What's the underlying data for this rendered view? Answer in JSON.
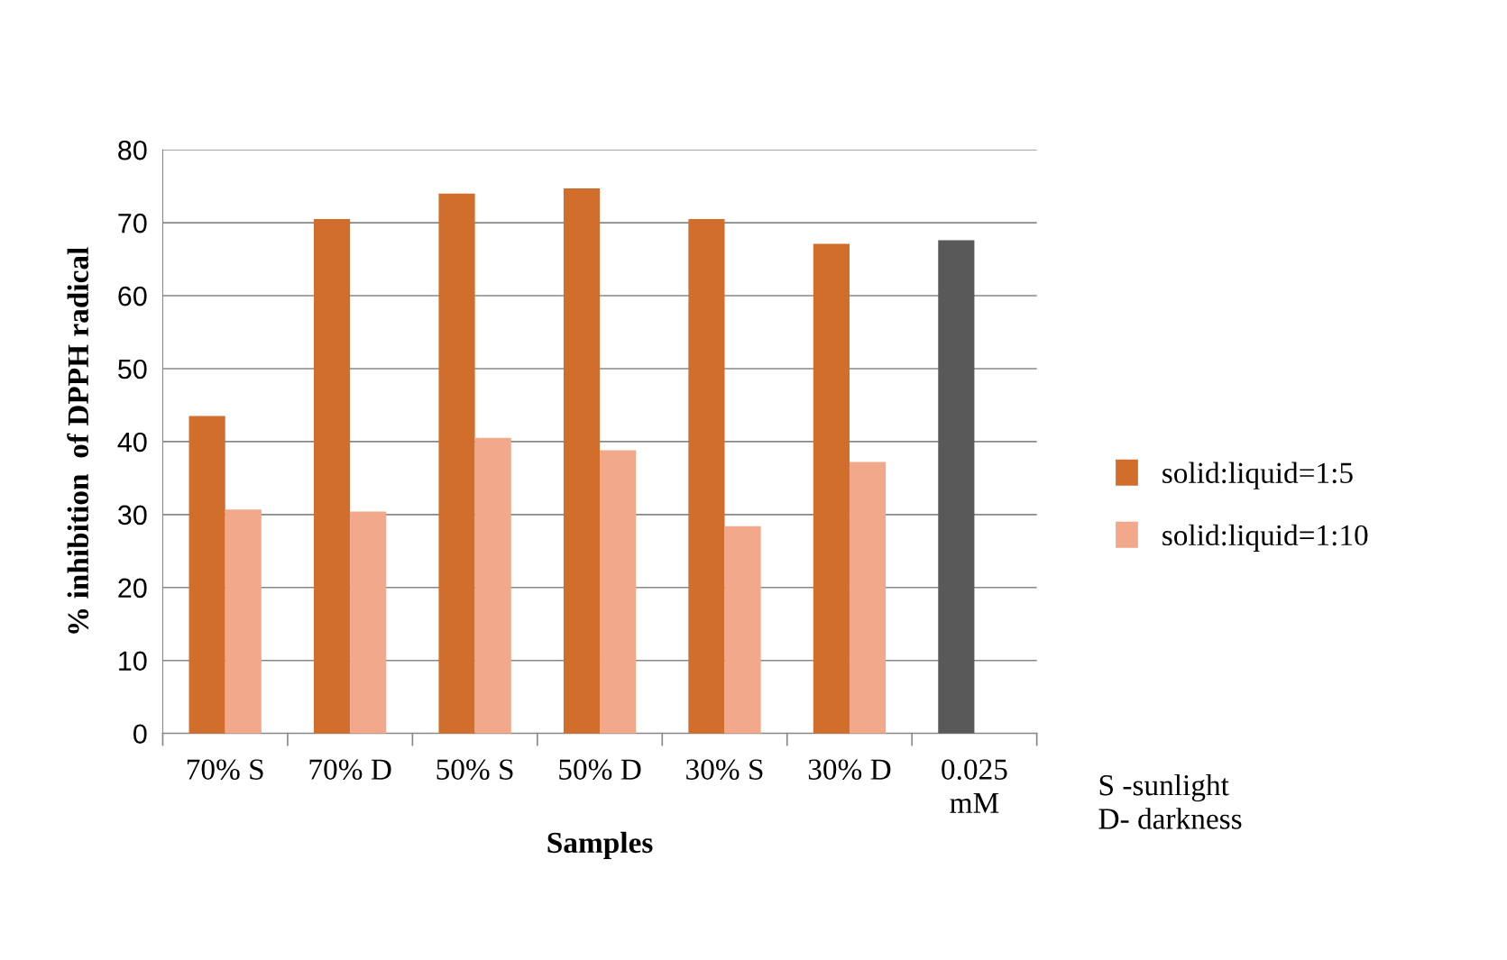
{
  "chart_data": {
    "type": "bar",
    "xlabel": "Samples",
    "ylabel": "% inhibition  of DPPH radical",
    "categories": [
      "70% S",
      "70% D",
      "50% S",
      "50% D",
      "30% S",
      "30% D",
      "0.025\nmM"
    ],
    "series": [
      {
        "name": "solid:liquid=1:5",
        "color": "#d26e2c",
        "colors": [
          "#d26e2c",
          "#d26e2c",
          "#d26e2c",
          "#d26e2c",
          "#d26e2c",
          "#d26e2c",
          "#595959"
        ],
        "values": [
          43.5,
          70.5,
          74.0,
          74.7,
          70.5,
          67.1,
          67.6
        ]
      },
      {
        "name": "solid:liquid=1:10",
        "color": "#f2a98b",
        "values": [
          30.7,
          30.4,
          40.5,
          38.8,
          28.4,
          37.2,
          null
        ]
      }
    ],
    "ylim": [
      0,
      80
    ],
    "yticks": [
      0,
      10,
      20,
      30,
      40,
      50,
      60,
      70,
      80
    ],
    "grid": "y",
    "legend": "right",
    "annotations": [
      "S -sunlight\nD- darkness"
    ]
  }
}
